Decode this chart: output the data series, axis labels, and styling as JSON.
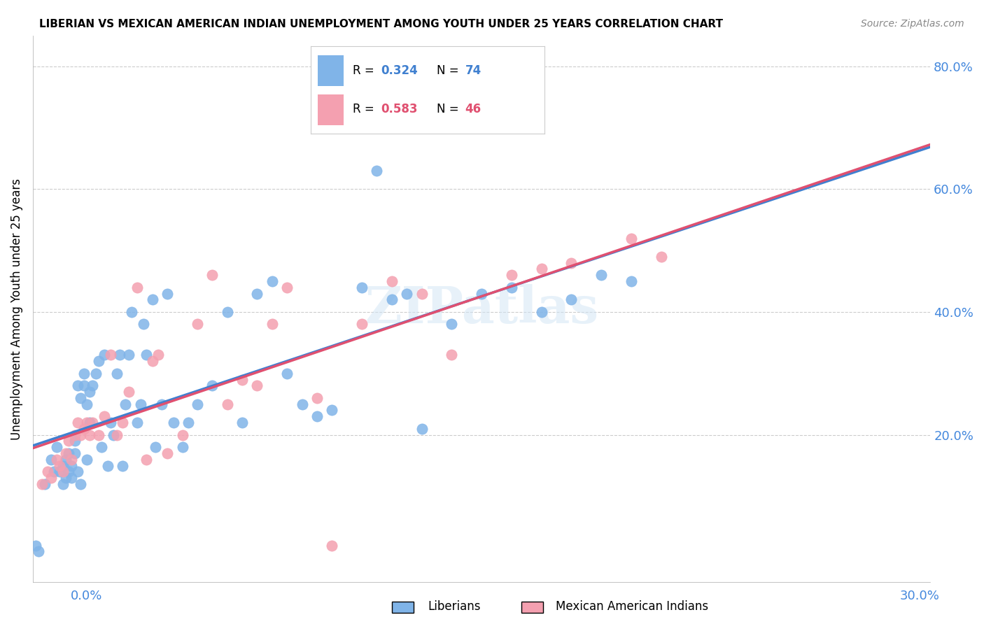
{
  "title": "LIBERIAN VS MEXICAN AMERICAN INDIAN UNEMPLOYMENT AMONG YOUTH UNDER 25 YEARS CORRELATION CHART",
  "source": "Source: ZipAtlas.com",
  "ylabel": "Unemployment Among Youth under 25 years",
  "x_range": [
    0.0,
    0.3
  ],
  "y_range": [
    -0.04,
    0.85
  ],
  "liberian_R": 0.324,
  "liberian_N": 74,
  "mexican_R": 0.583,
  "mexican_N": 46,
  "liberian_color": "#80b4e8",
  "mexican_color": "#f4a0b0",
  "trend_liberian_color": "#4080d0",
  "trend_mexican_color": "#e05070",
  "trend_dashed_color": "#bbbbbb",
  "watermark": "ZIPatlas",
  "legend_label1": "Liberians",
  "legend_label2": "Mexican American Indians",
  "liberian_x": [
    0.004,
    0.006,
    0.007,
    0.008,
    0.009,
    0.01,
    0.01,
    0.011,
    0.011,
    0.012,
    0.012,
    0.013,
    0.013,
    0.014,
    0.014,
    0.015,
    0.015,
    0.016,
    0.016,
    0.017,
    0.017,
    0.018,
    0.018,
    0.019,
    0.019,
    0.02,
    0.021,
    0.022,
    0.023,
    0.024,
    0.025,
    0.026,
    0.027,
    0.028,
    0.029,
    0.03,
    0.031,
    0.032,
    0.033,
    0.035,
    0.036,
    0.037,
    0.038,
    0.04,
    0.041,
    0.043,
    0.045,
    0.047,
    0.05,
    0.052,
    0.055,
    0.06,
    0.065,
    0.07,
    0.075,
    0.08,
    0.085,
    0.09,
    0.095,
    0.1,
    0.11,
    0.115,
    0.12,
    0.125,
    0.13,
    0.14,
    0.15,
    0.16,
    0.17,
    0.18,
    0.19,
    0.2,
    0.001,
    0.002
  ],
  "liberian_y": [
    0.12,
    0.16,
    0.14,
    0.18,
    0.14,
    0.12,
    0.15,
    0.13,
    0.16,
    0.14,
    0.17,
    0.13,
    0.15,
    0.17,
    0.19,
    0.14,
    0.28,
    0.26,
    0.12,
    0.28,
    0.3,
    0.16,
    0.25,
    0.27,
    0.22,
    0.28,
    0.3,
    0.32,
    0.18,
    0.33,
    0.15,
    0.22,
    0.2,
    0.3,
    0.33,
    0.15,
    0.25,
    0.33,
    0.4,
    0.22,
    0.25,
    0.38,
    0.33,
    0.42,
    0.18,
    0.25,
    0.43,
    0.22,
    0.18,
    0.22,
    0.25,
    0.28,
    0.4,
    0.22,
    0.43,
    0.45,
    0.3,
    0.25,
    0.23,
    0.24,
    0.44,
    0.63,
    0.42,
    0.43,
    0.21,
    0.38,
    0.43,
    0.44,
    0.4,
    0.42,
    0.46,
    0.45,
    0.02,
    0.01
  ],
  "mexican_x": [
    0.003,
    0.005,
    0.006,
    0.008,
    0.009,
    0.01,
    0.011,
    0.012,
    0.013,
    0.014,
    0.015,
    0.016,
    0.017,
    0.018,
    0.019,
    0.02,
    0.022,
    0.024,
    0.026,
    0.028,
    0.03,
    0.032,
    0.035,
    0.038,
    0.04,
    0.042,
    0.045,
    0.05,
    0.055,
    0.06,
    0.065,
    0.07,
    0.075,
    0.08,
    0.085,
    0.095,
    0.1,
    0.11,
    0.12,
    0.13,
    0.14,
    0.16,
    0.17,
    0.18,
    0.2,
    0.21
  ],
  "mexican_y": [
    0.12,
    0.14,
    0.13,
    0.16,
    0.15,
    0.14,
    0.17,
    0.19,
    0.16,
    0.2,
    0.22,
    0.2,
    0.21,
    0.22,
    0.2,
    0.22,
    0.2,
    0.23,
    0.33,
    0.2,
    0.22,
    0.27,
    0.44,
    0.16,
    0.32,
    0.33,
    0.17,
    0.2,
    0.38,
    0.46,
    0.25,
    0.29,
    0.28,
    0.38,
    0.44,
    0.26,
    0.02,
    0.38,
    0.45,
    0.43,
    0.33,
    0.46,
    0.47,
    0.48,
    0.52,
    0.49
  ]
}
